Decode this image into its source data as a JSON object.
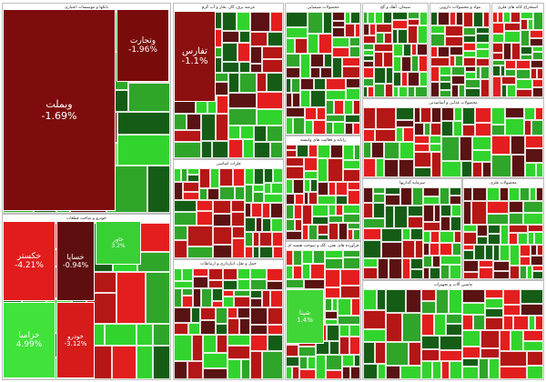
{
  "chart_data": {
    "type": "heatmap",
    "colors": {
      "strong_up": "#31d42c",
      "up": "#2fa52a",
      "dark_up": "#155d16",
      "flat": "#5a1212",
      "down": "#b51616",
      "strong_down": "#e41e1e"
    },
    "sectors": [
      {
        "name": "بانکها و موسسات اعتباری",
        "stocks": [
          {
            "ticker": "وبملت",
            "change": -1.69,
            "color": "#7e0c0c"
          },
          {
            "ticker": "وتجارت",
            "change": -1.96,
            "color": "#7a0b0b"
          }
        ]
      },
      {
        "name": "خودرو و ساخت قطعات",
        "stocks": [
          {
            "ticker": "خکستر",
            "change": -4.21,
            "color": "#e21c1c"
          },
          {
            "ticker": "خساپا",
            "change": -0.94,
            "color": "#5e0e0e"
          },
          {
            "ticker": "خزامیا",
            "change": 4.99,
            "color": "#3fe33a"
          },
          {
            "ticker": "خودرو",
            "change": -3.12,
            "color": "#d61b1b"
          },
          {
            "ticker": "خاور",
            "change": 3.2,
            "color": "#39d035"
          }
        ]
      },
      {
        "name": "عرضه برق، گاز، بخار و آب گرم",
        "stocks": [
          {
            "ticker": "تفارس",
            "change": -1.1,
            "color": "#8c1010"
          }
        ]
      },
      {
        "name": "محصولات شیمیایی",
        "stocks": [
          {
            "ticker": "شپنا",
            "change": 1.4,
            "color": "#41d638"
          }
        ]
      },
      {
        "name": "سیمان، آهک و گچ",
        "stocks": []
      },
      {
        "name": "فلزات اساسی",
        "stocks": []
      },
      {
        "name": "استخراج کانه های فلزی",
        "stocks": []
      },
      {
        "name": "مواد و محصولات دارویی",
        "stocks": []
      },
      {
        "name": "محصولات غذایی و آشامیدنی",
        "stocks": []
      },
      {
        "name": "رایانه و فعالیت های وابسته",
        "stocks": []
      },
      {
        "name": "حمل و نقل، انبارداری و ارتباطات",
        "stocks": []
      },
      {
        "name": "فرآورده های نفتی، کک و سوخت هسته ای",
        "stocks": []
      },
      {
        "name": "سرمایه گذاریها",
        "stocks": []
      },
      {
        "name": "محصولات فلزی",
        "stocks": []
      },
      {
        "name": "ماشین آلات و تجهیزات",
        "stocks": []
      }
    ],
    "legend": "none",
    "grid": false
  }
}
